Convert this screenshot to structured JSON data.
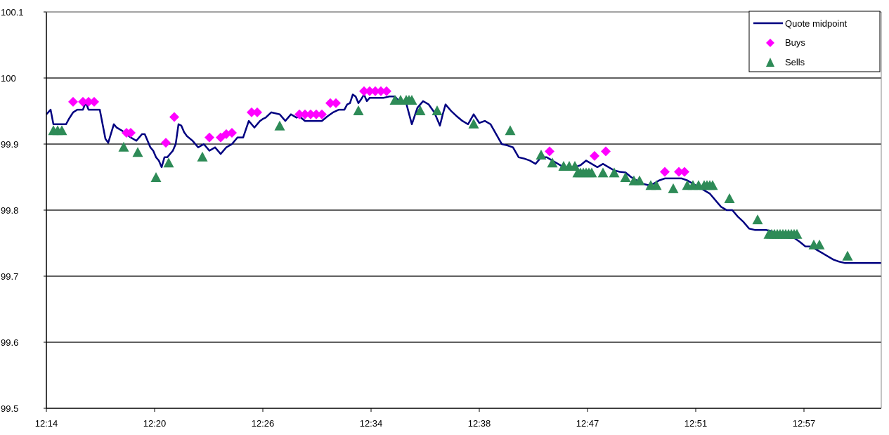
{
  "chart_data": {
    "type": "line",
    "title": "",
    "xlabel": "",
    "ylabel": "",
    "ylim": [
      99.5,
      100.1
    ],
    "yticks": [
      99.5,
      99.6,
      99.7,
      99.8,
      99.9,
      100,
      100.1
    ],
    "ytick_labels": [
      "99.5",
      "99.6",
      "99.7",
      "99.8",
      "99.9",
      "100",
      "100.1"
    ],
    "xticks": [
      0,
      38.5,
      77,
      115.5,
      154,
      192.5,
      231,
      269.5
    ],
    "xtick_labels": [
      "12:14",
      "12:20",
      "12:26",
      "12:34",
      "12:38",
      "12:47",
      "12:51",
      "12:57"
    ],
    "xlim": [
      0,
      297
    ],
    "grid": "horizontal",
    "legend_position": "top-right",
    "legend": [
      {
        "label": "Quote midpoint",
        "kind": "line",
        "color": "#000080"
      },
      {
        "label": "Buys",
        "kind": "diamond",
        "color": "#ff00ff"
      },
      {
        "label": "Sells",
        "kind": "triangle",
        "color": "#2e8b57"
      }
    ],
    "series": [
      {
        "name": "Quote midpoint",
        "color": "#000080",
        "x": [
          0,
          1.5,
          2.5,
          3,
          7,
          8,
          9.5,
          11,
          13,
          14,
          15,
          19,
          21,
          22,
          24,
          25,
          27,
          30,
          32,
          34,
          35,
          37,
          38,
          39,
          40,
          41,
          42,
          43,
          44,
          45,
          46,
          47,
          48,
          49,
          50,
          52,
          54,
          56,
          58,
          60,
          62,
          64,
          66,
          68,
          70,
          72,
          74,
          75,
          76,
          77,
          78,
          80,
          83,
          85,
          87,
          89,
          90,
          92,
          94,
          96,
          98,
          100,
          102,
          104,
          106,
          107,
          108,
          109,
          110,
          111,
          112,
          113,
          114,
          115,
          116,
          118,
          120,
          122,
          124,
          126,
          128,
          130,
          132,
          134,
          136,
          138,
          140,
          141,
          142,
          143,
          144,
          146,
          148,
          150,
          152,
          154,
          156,
          158,
          160,
          162,
          164,
          166,
          168,
          170,
          172,
          174,
          176,
          178,
          180,
          182,
          184,
          186,
          188,
          190,
          192,
          194,
          196,
          198,
          200,
          202,
          204,
          206,
          208,
          210,
          212,
          214,
          216,
          218,
          220,
          222,
          224,
          226,
          228,
          230,
          232,
          234,
          236,
          238,
          240,
          242,
          244,
          246,
          248,
          250,
          252,
          254,
          256,
          258,
          260,
          262,
          264,
          266,
          268,
          270,
          272,
          274,
          276,
          278,
          280,
          282,
          284,
          286,
          288,
          290,
          292,
          294,
          297
        ],
        "values": [
          99.945,
          99.952,
          99.93,
          99.93,
          99.93,
          99.938,
          99.948,
          99.952,
          99.952,
          99.963,
          99.952,
          99.952,
          99.908,
          99.902,
          99.93,
          99.925,
          99.92,
          99.91,
          99.905,
          99.915,
          99.915,
          99.895,
          99.89,
          99.88,
          99.875,
          99.865,
          99.88,
          99.88,
          99.885,
          99.89,
          99.9,
          99.93,
          99.928,
          99.918,
          99.912,
          99.905,
          99.895,
          99.9,
          99.89,
          99.895,
          99.885,
          99.895,
          99.9,
          99.91,
          99.91,
          99.935,
          99.925,
          99.93,
          99.935,
          99.938,
          99.94,
          99.948,
          99.945,
          99.935,
          99.945,
          99.94,
          99.942,
          99.935,
          99.935,
          99.935,
          99.935,
          99.942,
          99.948,
          99.952,
          99.952,
          99.96,
          99.962,
          99.975,
          99.972,
          99.962,
          99.968,
          99.975,
          99.965,
          99.97,
          99.97,
          99.97,
          99.97,
          99.972,
          99.972,
          99.962,
          99.962,
          99.93,
          99.955,
          99.965,
          99.96,
          99.948,
          99.928,
          99.945,
          99.96,
          99.955,
          99.95,
          99.942,
          99.935,
          99.93,
          99.945,
          99.932,
          99.935,
          99.93,
          99.915,
          99.9,
          99.898,
          99.895,
          99.88,
          99.878,
          99.875,
          99.87,
          99.88,
          99.88,
          99.875,
          99.87,
          99.865,
          99.865,
          99.865,
          99.868,
          99.875,
          99.87,
          99.865,
          99.87,
          99.865,
          99.86,
          99.858,
          99.857,
          99.85,
          99.845,
          99.84,
          99.838,
          99.84,
          99.845,
          99.848,
          99.848,
          99.848,
          99.848,
          99.845,
          99.84,
          99.835,
          99.83,
          99.825,
          99.815,
          99.805,
          99.8,
          99.8,
          99.79,
          99.782,
          99.772,
          99.77,
          99.77,
          99.77,
          99.768,
          99.765,
          99.76,
          99.758,
          99.758,
          99.752,
          99.745,
          99.745,
          99.74,
          99.735,
          99.73,
          99.725,
          99.722,
          99.72,
          99.72,
          99.72,
          99.72,
          99.72,
          99.72,
          99.72
        ]
      },
      {
        "name": "Buys",
        "color": "#ff00ff",
        "x": [
          9.5,
          13,
          15,
          17,
          28.5,
          30,
          42.5,
          45.5,
          58,
          62,
          64,
          66,
          73,
          75,
          90,
          92,
          94,
          96,
          98,
          101,
          103,
          113,
          115,
          117,
          119,
          121,
          179,
          195,
          199,
          220,
          225,
          227
        ],
        "values": [
          99.964,
          99.964,
          99.964,
          99.964,
          99.917,
          99.917,
          99.902,
          99.941,
          99.91,
          99.91,
          99.915,
          99.917,
          99.948,
          99.948,
          99.945,
          99.945,
          99.945,
          99.945,
          99.945,
          99.962,
          99.962,
          99.98,
          99.98,
          99.98,
          99.98,
          99.98,
          99.889,
          99.882,
          99.889,
          99.858,
          99.858,
          99.858
        ]
      },
      {
        "name": "Sells",
        "color": "#2e8b57",
        "x": [
          2.5,
          4,
          5.5,
          27.5,
          32.5,
          39,
          43.5,
          55.5,
          83,
          111,
          124,
          126,
          128,
          129,
          130,
          133,
          139,
          152,
          165,
          176,
          180,
          184,
          186,
          188,
          189,
          190,
          191,
          192,
          193,
          194,
          198,
          202,
          206,
          209,
          211,
          215,
          217,
          223,
          228,
          230,
          232,
          234,
          235,
          236,
          237,
          243,
          253,
          257,
          258,
          259,
          260,
          261,
          262,
          263,
          264,
          265,
          266,
          267,
          273,
          275,
          285
        ],
        "values": [
          99.92,
          99.92,
          99.92,
          99.895,
          99.887,
          99.849,
          99.871,
          99.88,
          99.927,
          99.95,
          99.966,
          99.966,
          99.966,
          99.966,
          99.966,
          99.95,
          99.95,
          99.93,
          99.92,
          99.883,
          99.871,
          99.866,
          99.866,
          99.866,
          99.856,
          99.856,
          99.856,
          99.856,
          99.856,
          99.856,
          99.856,
          99.856,
          99.849,
          99.844,
          99.844,
          99.837,
          99.837,
          99.832,
          99.837,
          99.837,
          99.837,
          99.837,
          99.837,
          99.837,
          99.837,
          99.817,
          99.785,
          99.763,
          99.763,
          99.763,
          99.763,
          99.763,
          99.763,
          99.763,
          99.763,
          99.763,
          99.763,
          99.763,
          99.747,
          99.747,
          99.73
        ]
      }
    ]
  }
}
